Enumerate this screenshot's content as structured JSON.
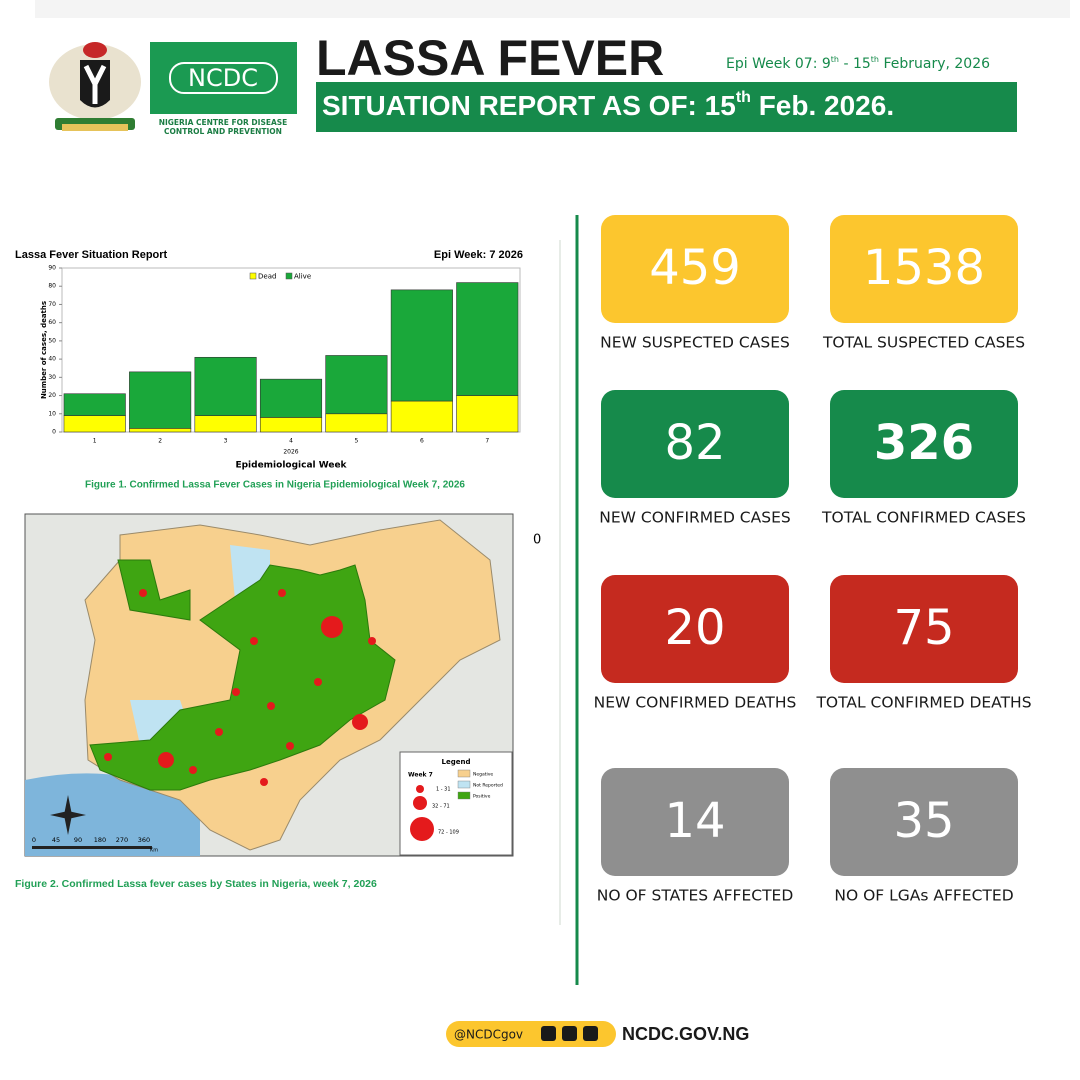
{
  "header": {
    "title": "LASSA FEVER",
    "epi_week": [
      "Epi Week 07: 9",
      "th",
      " - 15",
      "th",
      " February, 2026"
    ],
    "banner": [
      "SITUATION REPORT AS OF:  15",
      "th",
      " Feb. 2026."
    ],
    "logo_text": "NCDC",
    "logo_caption": [
      "NIGERIA CENTRE FOR DISEASE",
      "CONTROL AND PREVENTION"
    ]
  },
  "chart_data": {
    "type": "bar",
    "stacked": true,
    "title": "Lassa Fever Situation Report",
    "subtitle": "Epi Week: 7 2026",
    "categories": [
      "1",
      "2",
      "3",
      "4",
      "5",
      "6",
      "7"
    ],
    "series": [
      {
        "name": "Dead",
        "color": "#ffff00",
        "values": [
          9,
          2,
          9,
          8,
          10,
          17,
          20
        ]
      },
      {
        "name": "Alive",
        "color": "#1aa83a",
        "values": [
          12,
          31,
          32,
          21,
          32,
          61,
          62
        ]
      }
    ],
    "ylim": [
      0,
      90
    ],
    "yticks": [
      0,
      10,
      20,
      30,
      40,
      50,
      60,
      70,
      80,
      90
    ],
    "y_axis_label": "Number of cases, deaths",
    "x_axis_sublabel": "2026",
    "x_axis_label": "Epidemiological Week",
    "caption": "Figure 1. Confirmed Lassa Fever Cases in Nigeria Epidemiological Week 7, 2026"
  },
  "map": {
    "stray_label": "0",
    "legend_title": "Legend",
    "legend_week": "Week 7",
    "size_classes": [
      "1 - 31",
      "32 - 71",
      "72 - 109"
    ],
    "status_classes": [
      {
        "label": "Negative",
        "color": "#f7d08e"
      },
      {
        "label": "Not Reported",
        "color": "#bfe3f2"
      },
      {
        "label": "Positive",
        "color": "#3fa512"
      }
    ],
    "scale_labels": [
      "0",
      "45",
      "90",
      "180",
      "270",
      "360"
    ],
    "scale_unit": "Km",
    "caption": "Figure 2. Confirmed Lassa fever cases by States in Nigeria, week 7, 2026"
  },
  "cards": [
    {
      "value": 459,
      "label": "NEW SUSPECTED CASES",
      "color": "#fcc62e"
    },
    {
      "value": 1538,
      "label": "TOTAL SUSPECTED CASES",
      "color": "#fcc62e"
    },
    {
      "value": 82,
      "label": "NEW CONFIRMED CASES",
      "color": "#168a4b"
    },
    {
      "value": 326,
      "label": "TOTAL CONFIRMED CASES",
      "color": "#168a4b"
    },
    {
      "value": 20,
      "label": "NEW CONFIRMED DEATHS",
      "color": "#c52a1f"
    },
    {
      "value": 75,
      "label": "TOTAL CONFIRMED DEATHS",
      "color": "#c52a1f"
    },
    {
      "value": 14,
      "label": "NO OF STATES AFFECTED",
      "color": "#8f8f8f"
    },
    {
      "value": 35,
      "label": "NO OF LGAs AFFECTED",
      "color": "#8f8f8f"
    }
  ],
  "footer": {
    "handle": "@NCDCgov",
    "site": "NCDC.GOV.NG"
  }
}
